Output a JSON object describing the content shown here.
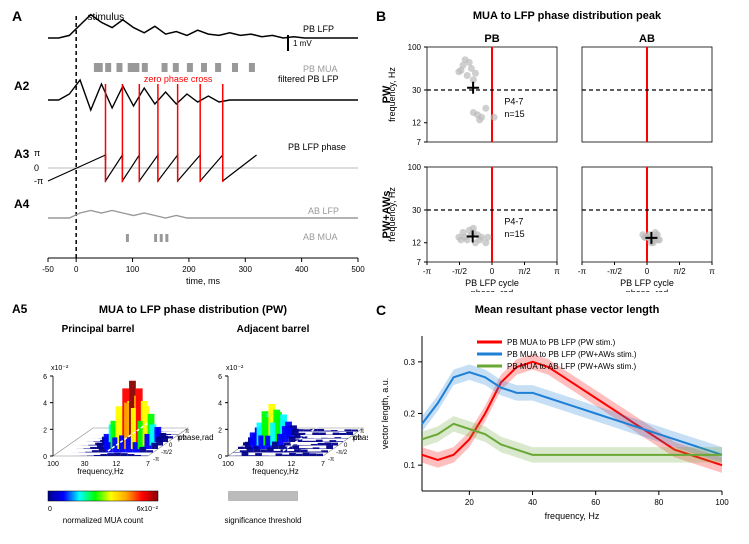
{
  "panelA": {
    "label": "A",
    "stimulus_label": "stimulus",
    "scalebar_label": "1 mV",
    "trace_PB_LFP_label": "PB LFP",
    "trace_PB_MUA_label": "PB MUA",
    "A2_label": "A2",
    "A2_zero_phase_label": "zero phase cross",
    "A2_filtered_label": "filtered PB LFP",
    "A3_label": "A3",
    "A3_phase_label": "PB LFP phase",
    "A4_label": "A4",
    "A4_AB_LFP_label": "AB LFP",
    "A4_AB_MUA_label": "AB MUA",
    "xlabel": "time, ms",
    "xlim": [
      -50,
      500
    ],
    "xticks": [
      -50,
      0,
      100,
      200,
      300,
      400,
      500
    ],
    "A3_yticks_labels": [
      "π",
      "0",
      "-π"
    ],
    "colors": {
      "black": "#000000",
      "gray": "#999999",
      "red": "#ff0000"
    },
    "PB_LFP_trace_y": [
      0,
      0,
      -2,
      -10,
      -18,
      -12,
      -8,
      -14,
      -8,
      -4,
      -9,
      -3,
      -5,
      -2,
      -6,
      -3,
      -2,
      -4,
      -2,
      -3,
      -1,
      -2,
      0,
      -1,
      0,
      0,
      0,
      0,
      0,
      0
    ],
    "PB_MUA_ticks_x": [
      35,
      40,
      55,
      75,
      95,
      105,
      120,
      155,
      175,
      200,
      225,
      250,
      280,
      310
    ],
    "A2_filtered_y": [
      0,
      0,
      -3,
      -10,
      5,
      -8,
      4,
      -7,
      3,
      -6,
      2,
      -4,
      2,
      -3,
      1,
      -2,
      1,
      0,
      0,
      0,
      0,
      0,
      0,
      0,
      0,
      0,
      0,
      0,
      0,
      0
    ],
    "A2_zero_x": [
      52,
      82,
      112,
      145,
      180,
      220,
      260
    ],
    "AB_LFP_trace_y": [
      0,
      0,
      0,
      -2,
      -3,
      -2,
      -3,
      -2,
      -1,
      -2,
      -1,
      0,
      -1,
      0,
      0,
      0,
      0,
      0,
      0,
      0,
      0,
      0,
      0,
      0,
      0,
      0,
      0,
      0,
      0,
      0
    ],
    "AB_MUA_ticks_x": [
      90,
      140,
      150,
      160
    ]
  },
  "panelB": {
    "label": "B",
    "title": "MUA to LFP phase distribution peak",
    "col_PB_label": "PB",
    "col_AB_label": "AB",
    "row_PW_label": "PW",
    "row_PWAWs_label": "PW+AWs",
    "ylabel": "frequency, Hz",
    "xlabel": "PB LFP cycle\nphase, rad",
    "xticks_labels": [
      "-π",
      "-π/2",
      "0",
      "π/2",
      "π"
    ],
    "yticks": [
      7,
      12,
      30,
      100
    ],
    "dashed_y": 30,
    "anno_text": "P4-7",
    "anno_n": "n=15",
    "colors": {
      "marker": "#bbbbbb",
      "cross": "#000000",
      "red_line": "#ff0000",
      "dashed": "#000000"
    },
    "points_PW_PB": [
      [
        -1.6,
        50
      ],
      [
        -1.4,
        60
      ],
      [
        -1.2,
        45
      ],
      [
        -1.0,
        55
      ],
      [
        -0.9,
        40
      ],
      [
        -1.3,
        70
      ],
      [
        -0.8,
        48
      ],
      [
        -1.1,
        65
      ],
      [
        -1.5,
        52
      ],
      [
        -0.7,
        15
      ],
      [
        -0.5,
        14
      ],
      [
        -0.3,
        18
      ],
      [
        -0.9,
        16
      ],
      [
        -0.6,
        13
      ],
      [
        0.1,
        14
      ]
    ],
    "points_PW_AB": [],
    "points_PWAW_PB": [
      [
        -1.6,
        14
      ],
      [
        -1.4,
        16
      ],
      [
        -1.2,
        13
      ],
      [
        -1.0,
        15
      ],
      [
        -0.9,
        18
      ],
      [
        -1.3,
        14
      ],
      [
        -0.8,
        12
      ],
      [
        -1.1,
        17
      ],
      [
        -1.5,
        13
      ],
      [
        -0.7,
        15
      ],
      [
        -0.5,
        14
      ],
      [
        -0.3,
        12
      ],
      [
        -0.9,
        16
      ],
      [
        -0.6,
        13
      ],
      [
        -0.2,
        14
      ]
    ],
    "points_PWAW_AB": [
      [
        0.1,
        14
      ],
      [
        0.3,
        13
      ],
      [
        0.5,
        15
      ],
      [
        0.2,
        12
      ],
      [
        -0.1,
        14
      ],
      [
        0.4,
        16
      ],
      [
        0.6,
        13
      ],
      [
        -0.2,
        15
      ],
      [
        0.0,
        14
      ],
      [
        0.3,
        12
      ],
      [
        0.5,
        13
      ],
      [
        0.1,
        15
      ],
      [
        -0.1,
        14
      ],
      [
        0.2,
        13
      ],
      [
        0.4,
        14
      ]
    ]
  },
  "panelA5": {
    "label": "A5",
    "title": "MUA to LFP phase distribution (PW)",
    "left_title": "Principal barrel",
    "right_title": "Adjacent barrel",
    "zlabel_left": "x10⁻²",
    "z_ticks": [
      0,
      2,
      4,
      6
    ],
    "xlabel": "frequency,Hz",
    "ylabel": "phase,rad",
    "colorbar_label": "normalized MUA count",
    "sig_label": "significance threshold",
    "colorbar_ticks": [
      "0",
      "6x10⁻²"
    ],
    "colormap": [
      "#00008b",
      "#0000ff",
      "#00ffff",
      "#00ff00",
      "#ffff00",
      "#ffa500",
      "#ff0000",
      "#8b0000"
    ]
  },
  "panelC": {
    "label": "C",
    "title": "Mean resultant phase vector length",
    "ylabel": "vector length, a.u.",
    "xlabel": "frequency, Hz",
    "xlim": [
      5,
      100
    ],
    "ylim": [
      0.05,
      0.35
    ],
    "xticks": [
      20,
      40,
      60,
      80,
      100
    ],
    "yticks": [
      0.1,
      0.2,
      0.3
    ],
    "legend": [
      {
        "color": "#ff0000",
        "label": "PB MUA to PB LFP (PW stim.)"
      },
      {
        "color": "#1e7fd6",
        "label": "PB MUA to PB LFP (PW+AWs stim.)"
      },
      {
        "color": "#6aa836",
        "label": "PB MUA to AB LFP (PW+AWs stim.)"
      }
    ],
    "series_red": [
      0.12,
      0.11,
      0.12,
      0.15,
      0.2,
      0.26,
      0.29,
      0.3,
      0.29,
      0.27,
      0.25,
      0.23,
      0.21,
      0.19,
      0.17,
      0.15,
      0.13,
      0.12,
      0.11,
      0.1
    ],
    "series_blue": [
      0.18,
      0.22,
      0.27,
      0.28,
      0.27,
      0.25,
      0.24,
      0.24,
      0.23,
      0.22,
      0.21,
      0.2,
      0.19,
      0.18,
      0.17,
      0.16,
      0.15,
      0.14,
      0.13,
      0.12
    ],
    "series_green": [
      0.15,
      0.16,
      0.18,
      0.17,
      0.16,
      0.14,
      0.13,
      0.12,
      0.12,
      0.12,
      0.12,
      0.12,
      0.12,
      0.12,
      0.12,
      0.12,
      0.12,
      0.12,
      0.12,
      0.12
    ],
    "shade_opacity": 0.25
  }
}
